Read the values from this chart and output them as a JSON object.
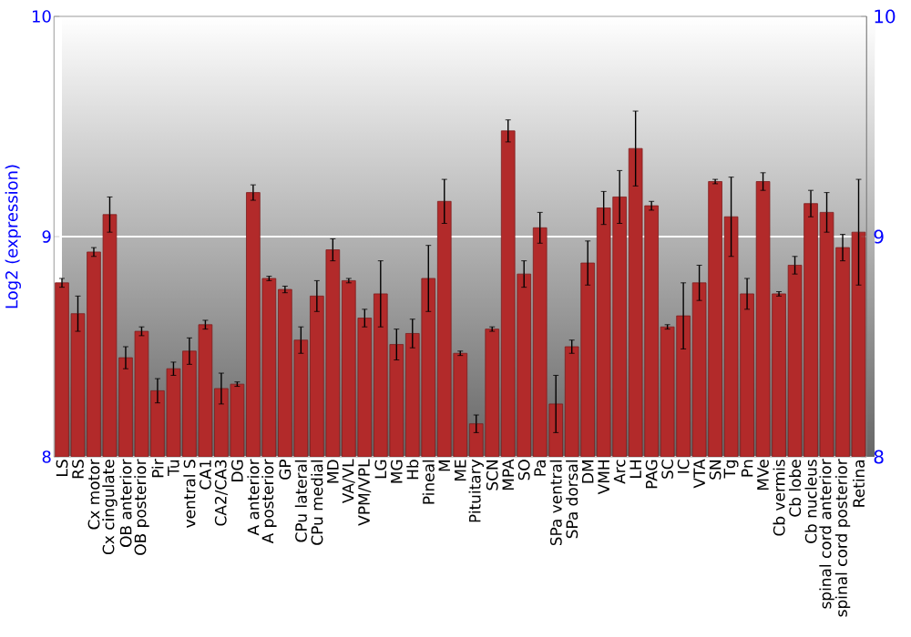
{
  "chart_data": {
    "type": "bar",
    "ylabel": "Log2 (expression)",
    "categories": [
      "LS",
      "RS",
      "Cx motor",
      "Cx cingulate",
      "OB anterior",
      "OB posterior",
      "Pir",
      "Tu",
      "ventral S",
      "CA1",
      "CA2/CA3",
      "DG",
      "A anterior",
      "A posterior",
      "GP",
      "CPu lateral",
      "CPu medial",
      "MD",
      "VA/VL",
      "VPM/VPL",
      "LG",
      "MG",
      "Hb",
      "Pineal",
      "M",
      "ME",
      "Pituitary",
      "SCN",
      "MPA",
      "SO",
      "Pa",
      "SPa ventral",
      "SPa dorsal",
      "DM",
      "VMH",
      "Arc",
      "LH",
      "PAG",
      "SC",
      "IC",
      "VTA",
      "SN",
      "Tg",
      "Pn",
      "MVe",
      "Cb vermis",
      "Cb lobe",
      "Cb nucleus",
      "spinal cord anterior",
      "spinal cord posterior",
      "Retina"
    ],
    "values": [
      8.79,
      8.65,
      8.93,
      9.1,
      8.45,
      8.57,
      8.3,
      8.4,
      8.48,
      8.6,
      8.31,
      8.33,
      9.2,
      8.81,
      8.76,
      8.53,
      8.73,
      8.94,
      8.8,
      8.63,
      8.74,
      8.51,
      8.56,
      8.81,
      9.16,
      8.47,
      8.15,
      8.58,
      9.48,
      8.83,
      9.04,
      8.24,
      8.5,
      8.88,
      9.13,
      9.18,
      9.4,
      9.14,
      8.59,
      8.64,
      8.79,
      9.25,
      9.09,
      8.74,
      9.25,
      8.74,
      8.87,
      9.15,
      9.11,
      8.95,
      9.02
    ],
    "errors": [
      0.02,
      0.08,
      0.02,
      0.08,
      0.05,
      0.02,
      0.055,
      0.03,
      0.06,
      0.02,
      0.07,
      0.01,
      0.035,
      0.01,
      0.015,
      0.06,
      0.07,
      0.05,
      0.01,
      0.04,
      0.15,
      0.07,
      0.065,
      0.15,
      0.1,
      0.01,
      0.04,
      0.01,
      0.05,
      0.06,
      0.07,
      0.13,
      0.03,
      0.1,
      0.075,
      0.12,
      0.17,
      0.02,
      0.01,
      0.15,
      0.08,
      0.01,
      0.18,
      0.07,
      0.04,
      0.01,
      0.04,
      0.06,
      0.09,
      0.06,
      0.24
    ],
    "color": "#b22a2a",
    "ylim": [
      8,
      10
    ],
    "yticks": [
      8,
      9,
      10
    ],
    "y2lim": [
      8,
      10
    ],
    "y2ticks": [
      8,
      9,
      10
    ],
    "grid": "y"
  }
}
